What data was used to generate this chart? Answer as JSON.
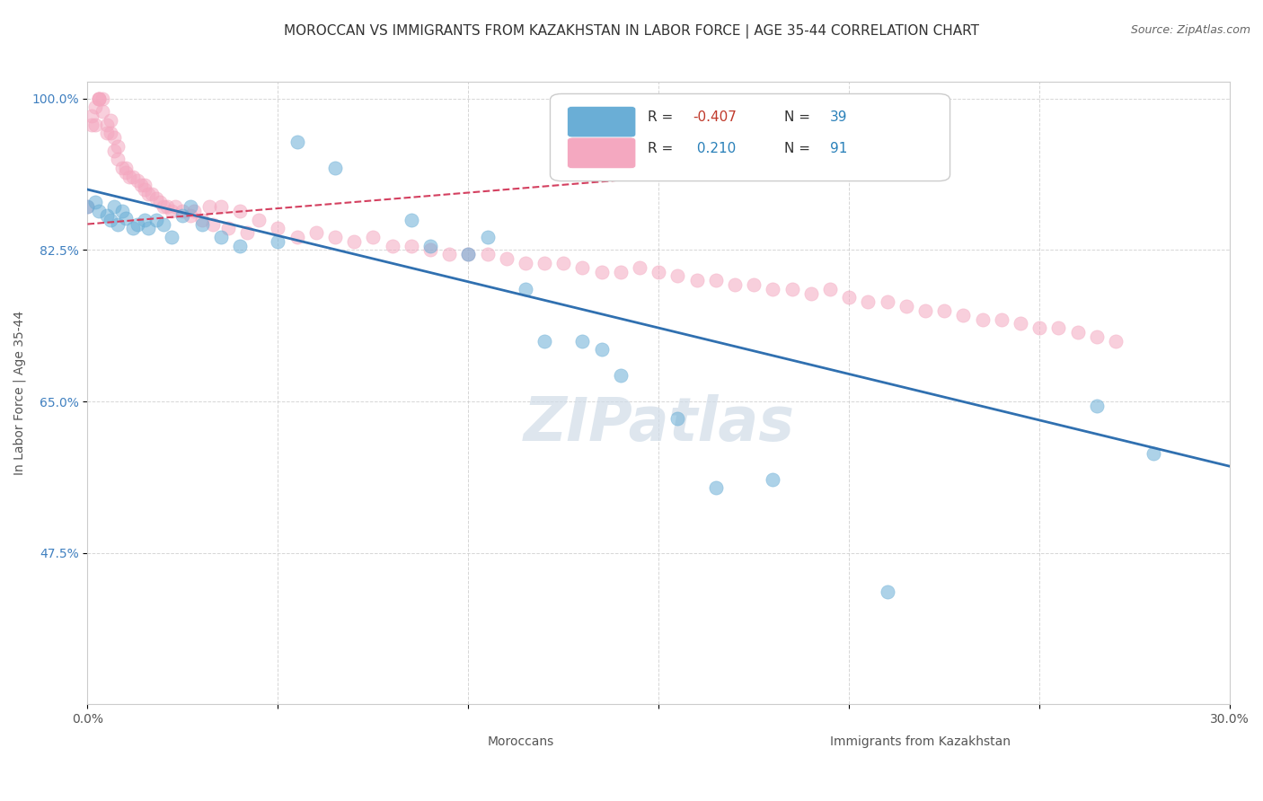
{
  "title": "MOROCCAN VS IMMIGRANTS FROM KAZAKHSTAN IN LABOR FORCE | AGE 35-44 CORRELATION CHART",
  "source": "Source: ZipAtlas.com",
  "ylabel": "In Labor Force | Age 35-44",
  "xlabel": "",
  "watermark": "ZIPatlas",
  "xlim": [
    0.0,
    0.3
  ],
  "ylim": [
    0.3,
    1.02
  ],
  "xticks": [
    0.0,
    0.05,
    0.1,
    0.15,
    0.2,
    0.25,
    0.3
  ],
  "xticklabels": [
    "0.0%",
    "",
    "",
    "",
    "",
    "",
    "30.0%"
  ],
  "yticks": [
    0.475,
    0.65,
    0.825,
    1.0
  ],
  "yticklabels": [
    "47.5%",
    "65.0%",
    "82.5%",
    "100.0%"
  ],
  "legend_entries": [
    {
      "label": "Moroccans",
      "color": "#a8c4e0",
      "R": "-0.407",
      "N": "39"
    },
    {
      "label": "Immigrants from Kazakhstan",
      "color": "#f4a0b0",
      "R": " 0.210",
      "N": "91"
    }
  ],
  "blue_scatter_x": [
    0.0,
    0.002,
    0.003,
    0.005,
    0.006,
    0.007,
    0.008,
    0.009,
    0.01,
    0.012,
    0.013,
    0.015,
    0.016,
    0.018,
    0.02,
    0.022,
    0.025,
    0.027,
    0.03,
    0.035,
    0.04,
    0.05,
    0.055,
    0.065,
    0.085,
    0.09,
    0.1,
    0.105,
    0.115,
    0.12,
    0.13,
    0.135,
    0.14,
    0.155,
    0.165,
    0.18,
    0.21,
    0.265,
    0.28
  ],
  "blue_scatter_y": [
    0.875,
    0.88,
    0.87,
    0.865,
    0.86,
    0.875,
    0.855,
    0.87,
    0.862,
    0.85,
    0.855,
    0.86,
    0.85,
    0.86,
    0.855,
    0.84,
    0.865,
    0.875,
    0.855,
    0.84,
    0.83,
    0.835,
    0.95,
    0.92,
    0.86,
    0.83,
    0.82,
    0.84,
    0.78,
    0.72,
    0.72,
    0.71,
    0.68,
    0.63,
    0.55,
    0.56,
    0.43,
    0.645,
    0.59
  ],
  "pink_scatter_x": [
    0.0,
    0.001,
    0.001,
    0.002,
    0.002,
    0.003,
    0.003,
    0.003,
    0.004,
    0.004,
    0.005,
    0.005,
    0.006,
    0.006,
    0.007,
    0.007,
    0.008,
    0.008,
    0.009,
    0.01,
    0.01,
    0.011,
    0.012,
    0.013,
    0.014,
    0.015,
    0.015,
    0.016,
    0.017,
    0.018,
    0.019,
    0.02,
    0.021,
    0.022,
    0.023,
    0.025,
    0.027,
    0.028,
    0.03,
    0.032,
    0.033,
    0.035,
    0.037,
    0.04,
    0.042,
    0.045,
    0.05,
    0.055,
    0.06,
    0.065,
    0.07,
    0.075,
    0.08,
    0.085,
    0.09,
    0.095,
    0.1,
    0.105,
    0.11,
    0.115,
    0.12,
    0.125,
    0.13,
    0.135,
    0.14,
    0.145,
    0.15,
    0.155,
    0.16,
    0.165,
    0.17,
    0.175,
    0.18,
    0.185,
    0.19,
    0.195,
    0.2,
    0.205,
    0.21,
    0.215,
    0.22,
    0.225,
    0.23,
    0.235,
    0.24,
    0.245,
    0.25,
    0.255,
    0.26,
    0.265,
    0.27
  ],
  "pink_scatter_y": [
    0.875,
    0.98,
    0.97,
    0.97,
    0.99,
    1.0,
    1.0,
    1.0,
    1.0,
    0.985,
    0.97,
    0.96,
    0.975,
    0.96,
    0.955,
    0.94,
    0.93,
    0.945,
    0.92,
    0.92,
    0.915,
    0.91,
    0.91,
    0.905,
    0.9,
    0.9,
    0.895,
    0.89,
    0.89,
    0.885,
    0.88,
    0.875,
    0.875,
    0.87,
    0.875,
    0.87,
    0.865,
    0.87,
    0.86,
    0.875,
    0.855,
    0.875,
    0.85,
    0.87,
    0.845,
    0.86,
    0.85,
    0.84,
    0.845,
    0.84,
    0.835,
    0.84,
    0.83,
    0.83,
    0.825,
    0.82,
    0.82,
    0.82,
    0.815,
    0.81,
    0.81,
    0.81,
    0.805,
    0.8,
    0.8,
    0.805,
    0.8,
    0.795,
    0.79,
    0.79,
    0.785,
    0.785,
    0.78,
    0.78,
    0.775,
    0.78,
    0.77,
    0.765,
    0.765,
    0.76,
    0.755,
    0.755,
    0.75,
    0.745,
    0.745,
    0.74,
    0.735,
    0.735,
    0.73,
    0.725,
    0.72
  ],
  "blue_line_x": [
    0.0,
    0.3
  ],
  "blue_line_y": [
    0.895,
    0.575
  ],
  "pink_line_x": [
    0.0,
    0.22
  ],
  "pink_line_y": [
    0.855,
    0.935
  ],
  "scatter_size": 120,
  "scatter_alpha": 0.55,
  "blue_color": "#6aaed6",
  "pink_color": "#f4a8c0",
  "blue_line_color": "#3070b0",
  "pink_line_color": "#d44060",
  "grid_color": "#cccccc",
  "background_color": "#ffffff",
  "title_fontsize": 11,
  "axis_label_fontsize": 10,
  "tick_fontsize": 10,
  "source_fontsize": 9,
  "watermark_fontsize": 48,
  "watermark_color": "#d0dce8",
  "legend_fontsize": 11,
  "r_color": "#c0392b",
  "n_color": "#2980b9"
}
